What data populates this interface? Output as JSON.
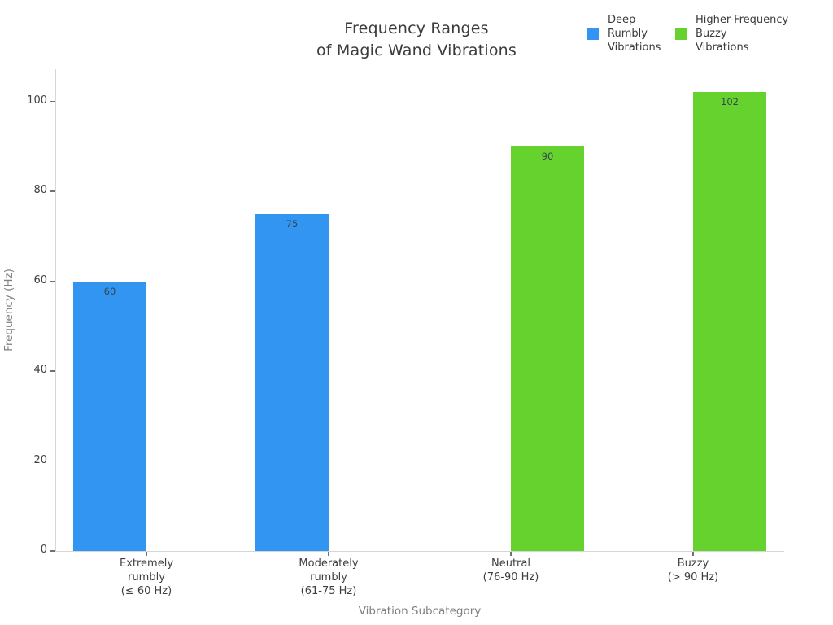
{
  "title": "Frequency Ranges\nof Magic Wand Vibrations",
  "legend": {
    "items": [
      {
        "label": "Deep\nRumbly\nVibrations",
        "color": "#3295F2"
      },
      {
        "label": "Higher-Frequency\nBuzzy\nVibrations",
        "color": "#66D22E"
      }
    ]
  },
  "axes": {
    "y_label": "Frequency (Hz)",
    "x_label": "Vibration Subcategory",
    "y_ticks": [
      0,
      20,
      40,
      60,
      80,
      100
    ]
  },
  "chart_data": {
    "type": "bar",
    "title": "Frequency Ranges of Magic Wand Vibrations",
    "xlabel": "Vibration Subcategory",
    "ylabel": "Frequency (Hz)",
    "ylim": [
      0,
      107
    ],
    "grid": false,
    "legend_position": "top-right",
    "categories": [
      "Extremely\nrumbly\n(≤ 60 Hz)",
      "Moderately\nrumbly\n(61-75 Hz)",
      "Neutral\n(76-90 Hz)",
      "Buzzy\n(> 90 Hz)"
    ],
    "series": [
      {
        "name": "Deep Rumbly Vibrations",
        "color": "#3295F2",
        "values": [
          60,
          75,
          null,
          null
        ]
      },
      {
        "name": "Higher-Frequency Buzzy Vibrations",
        "color": "#66D22E",
        "values": [
          null,
          null,
          90,
          102
        ]
      }
    ],
    "bar_labels": [
      60,
      75,
      90,
      102
    ]
  }
}
